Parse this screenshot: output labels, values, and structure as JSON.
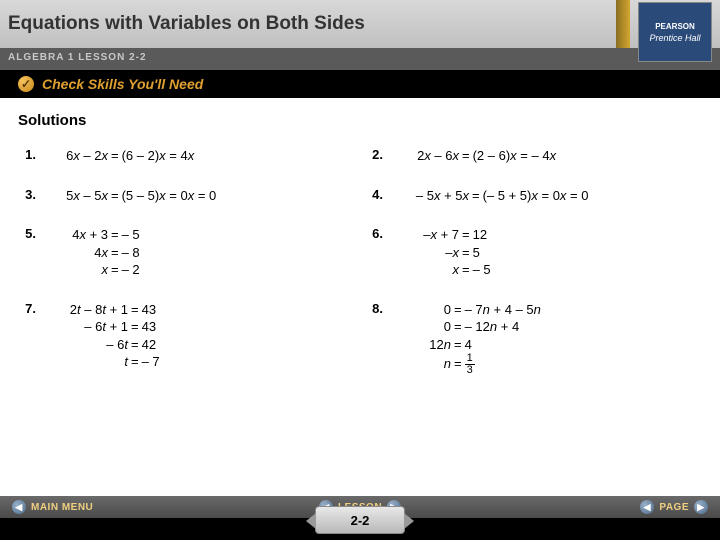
{
  "header": {
    "title": "Equations with Variables on Both Sides",
    "sub": "ALGEBRA 1 LESSON 2-2",
    "logo_top": "PEARSON",
    "logo_bottom": "Prentice Hall"
  },
  "skills": {
    "check": "✓",
    "label": "Check Skills You'll Need"
  },
  "content": {
    "title": "Solutions",
    "problems": [
      {
        "num": "1.",
        "lines": [
          {
            "lhs_parts": [
              [
                "",
                "6"
              ],
              [
                "it",
                "x"
              ],
              [
                "",
                " – 2"
              ],
              [
                "it",
                "x"
              ]
            ],
            "rhs_parts": [
              [
                "",
                "(6 – 2)"
              ],
              [
                "it",
                "x"
              ],
              [
                "",
                " = 4"
              ],
              [
                "it",
                "x"
              ]
            ],
            "lhs_w": 64
          }
        ]
      },
      {
        "num": "2.",
        "lines": [
          {
            "lhs_parts": [
              [
                "",
                "2"
              ],
              [
                "it",
                "x"
              ],
              [
                "",
                " – 6"
              ],
              [
                "it",
                "x"
              ]
            ],
            "rhs_parts": [
              [
                "",
                "(2 – 6)"
              ],
              [
                "it",
                "x"
              ],
              [
                "",
                " = – 4"
              ],
              [
                "it",
                "x"
              ]
            ],
            "lhs_w": 68
          }
        ]
      },
      {
        "num": "3.",
        "lines": [
          {
            "lhs_parts": [
              [
                "",
                "5"
              ],
              [
                "it",
                "x"
              ],
              [
                "",
                " – 5"
              ],
              [
                "it",
                "x"
              ]
            ],
            "rhs_parts": [
              [
                "",
                "(5 – 5)"
              ],
              [
                "it",
                "x"
              ],
              [
                "",
                " = 0"
              ],
              [
                "it",
                "x"
              ],
              [
                "",
                " = 0"
              ]
            ],
            "lhs_w": 64
          }
        ]
      },
      {
        "num": "4.",
        "lines": [
          {
            "lhs_parts": [
              [
                "",
                "– 5"
              ],
              [
                "it",
                "x"
              ],
              [
                "",
                " + 5"
              ],
              [
                "it",
                "x"
              ]
            ],
            "rhs_parts": [
              [
                "",
                "(– 5 + 5)"
              ],
              [
                "it",
                "x"
              ],
              [
                "",
                " = 0"
              ],
              [
                "it",
                "x"
              ],
              [
                "",
                " = 0"
              ]
            ],
            "lhs_w": 78
          }
        ]
      },
      {
        "num": "5.",
        "lines": [
          {
            "lhs_parts": [
              [
                "",
                "4"
              ],
              [
                "it",
                "x"
              ],
              [
                "",
                " + 3"
              ]
            ],
            "rhs_parts": [
              [
                "",
                "– 5"
              ]
            ],
            "lhs_w": 64
          },
          {
            "lhs_parts": [
              [
                "",
                "4"
              ],
              [
                "it",
                "x"
              ]
            ],
            "rhs_parts": [
              [
                "",
                "– 8"
              ]
            ],
            "lhs_w": 64
          },
          {
            "lhs_parts": [
              [
                "it",
                "x"
              ]
            ],
            "rhs_parts": [
              [
                "",
                "– 2"
              ]
            ],
            "lhs_w": 64
          }
        ]
      },
      {
        "num": "6.",
        "lines": [
          {
            "lhs_parts": [
              [
                "",
                "–"
              ],
              [
                "it",
                "x"
              ],
              [
                "",
                " + 7"
              ]
            ],
            "rhs_parts": [
              [
                "",
                "12"
              ]
            ],
            "lhs_w": 68
          },
          {
            "lhs_parts": [
              [
                "",
                "–"
              ],
              [
                "it",
                "x"
              ]
            ],
            "rhs_parts": [
              [
                "",
                "5"
              ]
            ],
            "lhs_w": 68
          },
          {
            "lhs_parts": [
              [
                "it",
                "x"
              ]
            ],
            "rhs_parts": [
              [
                "",
                "– 5"
              ]
            ],
            "lhs_w": 68
          }
        ]
      },
      {
        "num": "7.",
        "lines": [
          {
            "lhs_parts": [
              [
                "",
                "2"
              ],
              [
                "it",
                "t"
              ],
              [
                "",
                " – 8"
              ],
              [
                "it",
                "t"
              ],
              [
                "",
                " + 1"
              ]
            ],
            "rhs_parts": [
              [
                "",
                "43"
              ]
            ],
            "lhs_w": 84
          },
          {
            "lhs_parts": [
              [
                "",
                "– 6"
              ],
              [
                "it",
                "t"
              ],
              [
                "",
                " + 1"
              ]
            ],
            "rhs_parts": [
              [
                "",
                "43"
              ]
            ],
            "lhs_w": 84
          },
          {
            "lhs_parts": [
              [
                "",
                "– 6"
              ],
              [
                "it",
                "t"
              ]
            ],
            "rhs_parts": [
              [
                "",
                "42"
              ]
            ],
            "lhs_w": 84
          },
          {
            "lhs_parts": [
              [
                "it",
                "t"
              ]
            ],
            "rhs_parts": [
              [
                "",
                "– 7"
              ]
            ],
            "lhs_w": 84
          }
        ]
      },
      {
        "num": "8.",
        "lines": [
          {
            "lhs_parts": [
              [
                "",
                "0"
              ]
            ],
            "rhs_parts": [
              [
                "",
                "– 7"
              ],
              [
                "it",
                "n"
              ],
              [
                "",
                " + 4 – 5"
              ],
              [
                "it",
                "n"
              ]
            ],
            "lhs_w": 60
          },
          {
            "lhs_parts": [
              [
                "",
                "0"
              ]
            ],
            "rhs_parts": [
              [
                "",
                "– 12"
              ],
              [
                "it",
                "n"
              ],
              [
                "",
                " + 4"
              ]
            ],
            "lhs_w": 60
          },
          {
            "lhs_parts": [
              [
                "",
                "12"
              ],
              [
                "it",
                "n"
              ]
            ],
            "rhs_parts": [
              [
                "",
                "4"
              ]
            ],
            "lhs_w": 60
          },
          {
            "lhs_parts": [
              [
                "it",
                "n"
              ]
            ],
            "rhs_frac": {
              "num": "1",
              "den": "3"
            },
            "lhs_w": 60
          }
        ]
      }
    ]
  },
  "footer": {
    "main_menu": "MAIN MENU",
    "lesson": "LESSON",
    "page": "PAGE",
    "lesson_num": "2-2"
  }
}
